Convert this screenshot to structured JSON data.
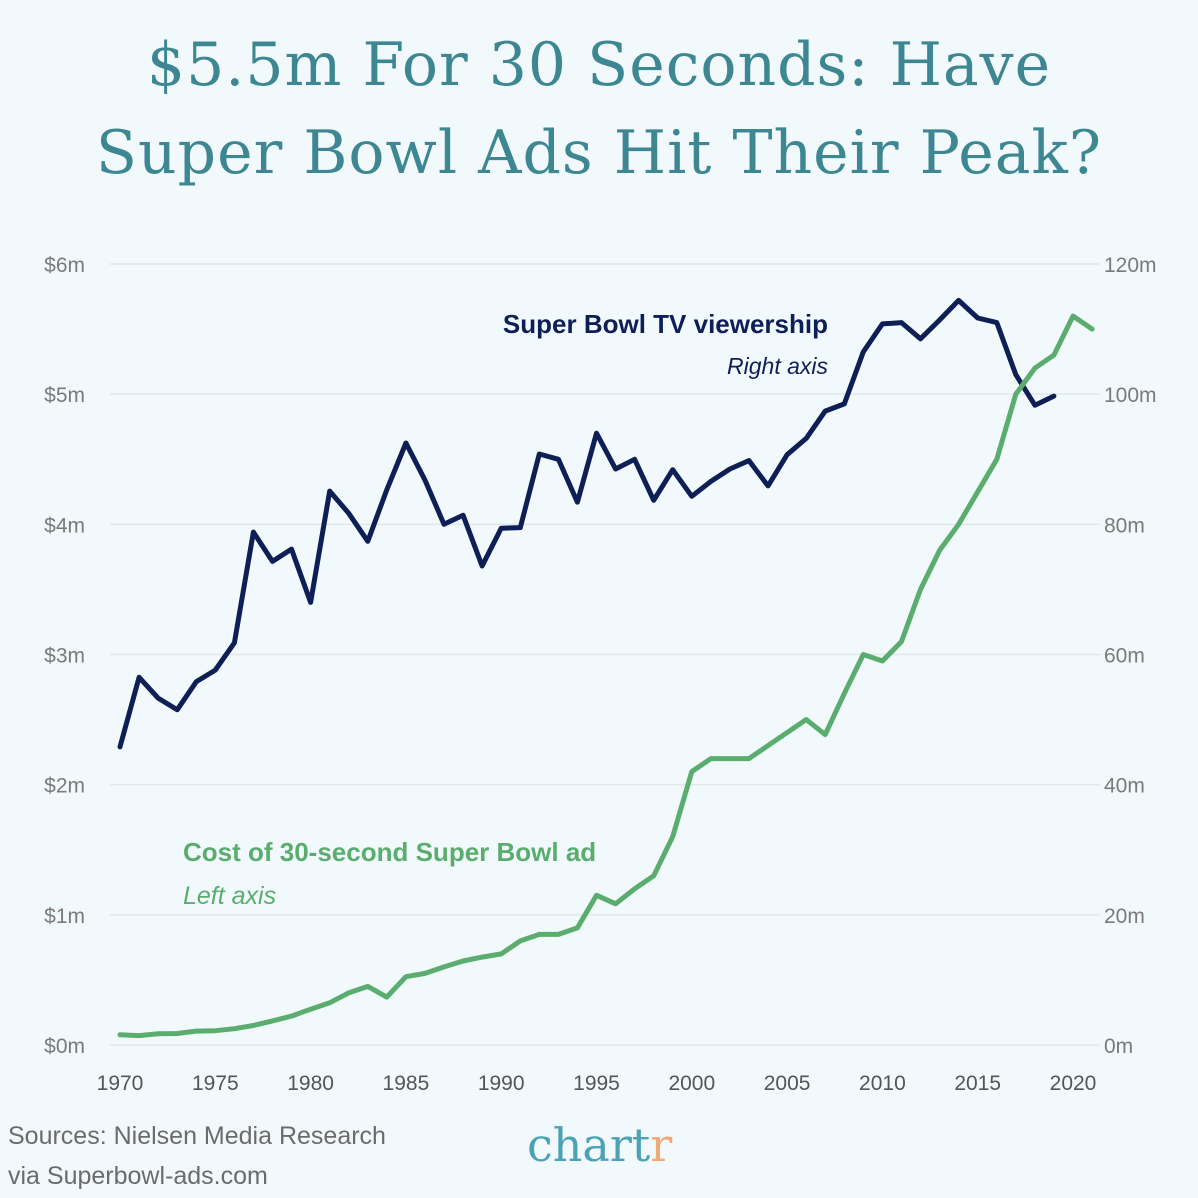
{
  "title_line1": "$5.5m For 30 Seconds: Have",
  "title_line2": "Super Bowl Ads Hit Their Peak?",
  "footer": {
    "source_line1": "Sources: Nielsen Media Research",
    "source_line2": "via Superbowl-ads.com",
    "logo_main": "chart",
    "logo_end": "r"
  },
  "chart_data": {
    "type": "line",
    "grid": true,
    "x": [
      1970,
      1971,
      1972,
      1973,
      1974,
      1975,
      1976,
      1977,
      1978,
      1979,
      1980,
      1981,
      1982,
      1983,
      1984,
      1985,
      1986,
      1987,
      1988,
      1989,
      1990,
      1991,
      1992,
      1993,
      1994,
      1995,
      1996,
      1997,
      1998,
      1999,
      2000,
      2001,
      2002,
      2003,
      2004,
      2005,
      2006,
      2007,
      2008,
      2009,
      2010,
      2011,
      2012,
      2013,
      2014,
      2015,
      2016,
      2017,
      2018,
      2019,
      2020,
      2021
    ],
    "xlim": [
      1970,
      2021
    ],
    "x_ticks": [
      "1970",
      "1975",
      "1980",
      "1985",
      "1990",
      "1995",
      "2000",
      "2005",
      "2010",
      "2015",
      "2020"
    ],
    "left_axis": {
      "ylim": [
        0,
        6
      ],
      "ticks": [
        "$0m",
        "$1m",
        "$2m",
        "$3m",
        "$4m",
        "$5m",
        "$6m"
      ]
    },
    "right_axis": {
      "ylim": [
        0,
        120
      ],
      "ticks": [
        "0m",
        "20m",
        "40m",
        "60m",
        "80m",
        "100m",
        "120m"
      ]
    },
    "series": [
      {
        "name": "Super Bowl TV viewership",
        "sublabel": "Right axis",
        "axis": "right",
        "color": "#0e1f56",
        "values": [
          45.8,
          56.5,
          53.3,
          51.5,
          55.8,
          57.6,
          61.8,
          78.8,
          74.3,
          76.2,
          68.0,
          85.1,
          81.7,
          77.4,
          85.3,
          92.5,
          86.8,
          80.0,
          81.4,
          73.6,
          79.4,
          79.5,
          90.8,
          90.0,
          83.4,
          94.0,
          88.5,
          90.0,
          83.7,
          88.4,
          84.3,
          86.6,
          88.5,
          89.8,
          85.9,
          90.7,
          93.2,
          97.4,
          98.5,
          106.5,
          110.8,
          111.0,
          108.5,
          111.4,
          114.4,
          111.7,
          111.0,
          103.0,
          98.3,
          99.7,
          null,
          null
        ]
      },
      {
        "name": "Cost of 30-second Super Bowl ad",
        "sublabel": "Left axis",
        "axis": "left",
        "color": "#5aad6f",
        "values": [
          0.078,
          0.072,
          0.086,
          0.088,
          0.107,
          0.11,
          0.125,
          0.15,
          0.185,
          0.222,
          0.275,
          0.324,
          0.4,
          0.45,
          0.368,
          0.525,
          0.55,
          0.6,
          0.645,
          0.675,
          0.7,
          0.8,
          0.85,
          0.85,
          0.9,
          1.15,
          1.085,
          1.2,
          1.3,
          1.6,
          2.1,
          2.2,
          2.2,
          2.2,
          2.3,
          2.4,
          2.5,
          2.385,
          2.7,
          3.0,
          2.95,
          3.1,
          3.5,
          3.8,
          4.0,
          4.25,
          4.5,
          5.0,
          5.2,
          5.3,
          5.6,
          5.5
        ]
      }
    ]
  }
}
